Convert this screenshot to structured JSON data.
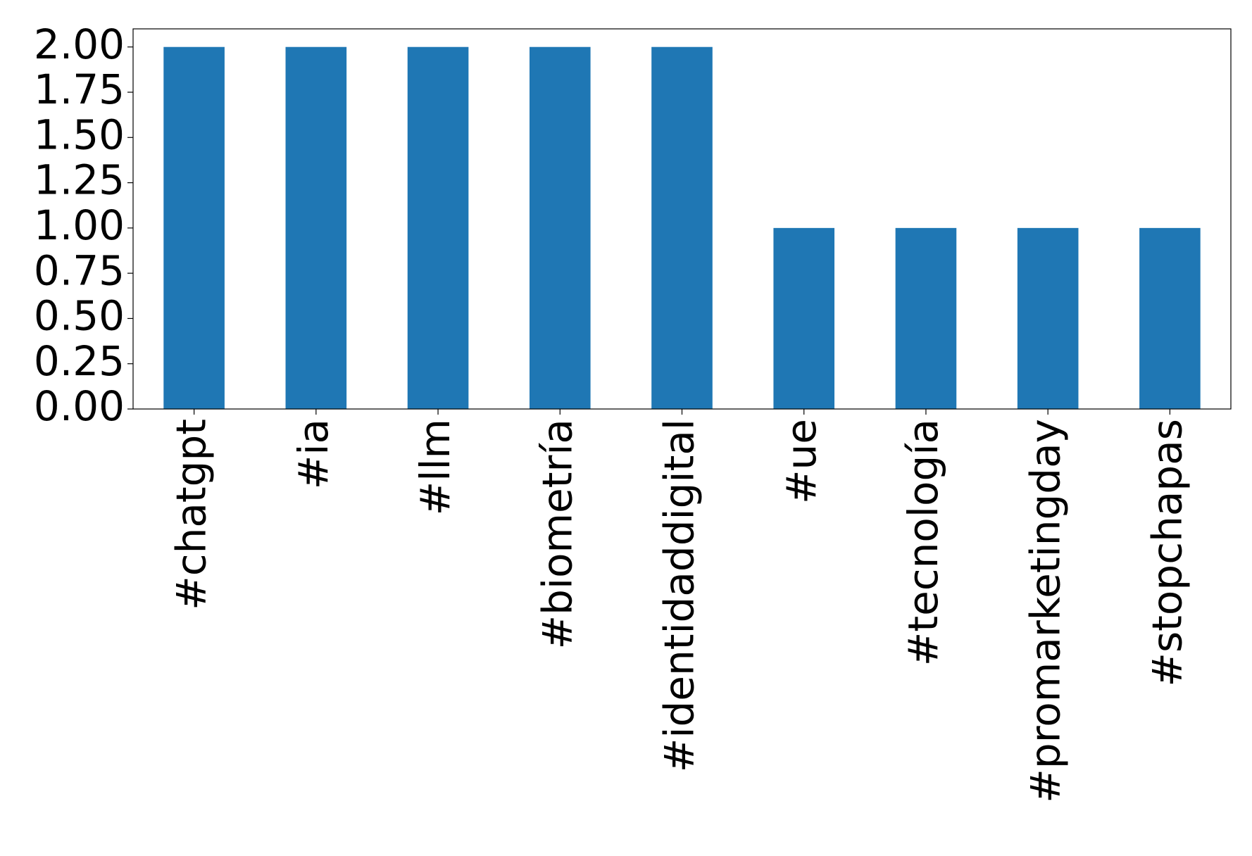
{
  "chart_data": {
    "type": "bar",
    "categories": [
      "#chatgpt",
      "#ia",
      "#llm",
      "#biometría",
      "#identidaddigital",
      "#ue",
      "#tecnología",
      "#promarketingday",
      "#stopchapas"
    ],
    "values": [
      2,
      2,
      2,
      2,
      2,
      1,
      1,
      1,
      1
    ],
    "color": "#1f77b4",
    "ylim": [
      0,
      2.1
    ],
    "yticks": [
      {
        "value": 0,
        "label": "0.00"
      },
      {
        "value": 0.25,
        "label": "0.25"
      },
      {
        "value": 0.5,
        "label": "0.50"
      },
      {
        "value": 0.75,
        "label": "0.75"
      },
      {
        "value": 1,
        "label": "1.00"
      },
      {
        "value": 1.25,
        "label": "1.25"
      },
      {
        "value": 1.5,
        "label": "1.50"
      },
      {
        "value": 1.75,
        "label": "1.75"
      },
      {
        "value": 2,
        "label": "2.00"
      }
    ],
    "grid": false
  }
}
